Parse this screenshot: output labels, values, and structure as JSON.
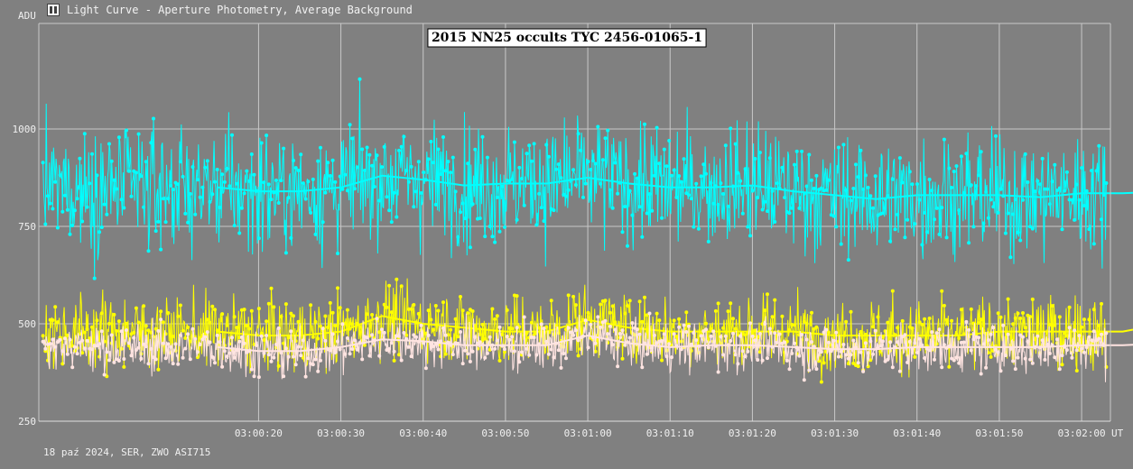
{
  "window": {
    "title": "Light Curve - Aperture Photometry, Average Background",
    "footer": "18 paź 2024, SER, ZWO ASI715"
  },
  "chart_data": {
    "type": "line",
    "title": "2015 NN25 occults TYC 2456-01065-1",
    "xlabel": "UT",
    "ylabel": "ADU",
    "ylim": [
      250,
      1000
    ],
    "y_ticks": [
      250,
      500,
      750,
      1000
    ],
    "y_tick_labels": [
      "250",
      "500",
      "750",
      "1000"
    ],
    "x_ticks": [
      "03:00:20",
      "03:00:30",
      "03:00:40",
      "03:00:50",
      "03:01:00",
      "03:01:10",
      "03:01:20",
      "03:01:30",
      "03:01:40",
      "03:01:50",
      "03:02:00"
    ],
    "x_range_seconds": [
      10793.3,
      10923.5
    ],
    "grid": true,
    "colors": {
      "background": "#808080",
      "grid": "#c8c8c8",
      "cyan": "#00ffff",
      "yellow": "#ffff00",
      "pink": "#ffe4e1"
    },
    "series": [
      {
        "color": "#00ffff",
        "x": [
          "03:00:15",
          "03:00:20",
          "03:00:25",
          "03:00:30",
          "03:00:35",
          "03:00:40",
          "03:00:45",
          "03:00:50",
          "03:00:55",
          "03:01:00",
          "03:01:05",
          "03:01:10",
          "03:01:15",
          "03:01:20",
          "03:01:25",
          "03:01:30",
          "03:01:35",
          "03:01:40",
          "03:01:45",
          "03:01:50",
          "03:01:55",
          "03:02:00",
          "03:02:05",
          "03:02:10"
        ],
        "values": [
          850,
          840,
          840,
          850,
          880,
          870,
          855,
          860,
          860,
          875,
          860,
          850,
          850,
          855,
          840,
          830,
          820,
          830,
          830,
          830,
          825,
          835,
          835,
          840
        ]
      },
      {
        "color": "#ffff00",
        "x": [
          "03:00:15",
          "03:00:20",
          "03:00:25",
          "03:00:30",
          "03:00:35",
          "03:00:40",
          "03:00:45",
          "03:00:50",
          "03:00:55",
          "03:01:00",
          "03:01:05",
          "03:01:10",
          "03:01:15",
          "03:01:20",
          "03:01:25",
          "03:01:30",
          "03:01:35",
          "03:01:40",
          "03:01:45",
          "03:01:50",
          "03:01:55",
          "03:02:00",
          "03:02:05",
          "03:02:10"
        ],
        "values": [
          480,
          470,
          470,
          480,
          520,
          500,
          490,
          480,
          480,
          510,
          490,
          480,
          480,
          480,
          480,
          470,
          470,
          470,
          470,
          480,
          480,
          480,
          480,
          500
        ]
      },
      {
        "color": "#ffe4e1",
        "x": [
          "03:00:15",
          "03:00:20",
          "03:00:25",
          "03:00:30",
          "03:00:35",
          "03:00:40",
          "03:00:45",
          "03:00:50",
          "03:00:55",
          "03:01:00",
          "03:01:05",
          "03:01:10",
          "03:01:15",
          "03:01:20",
          "03:01:25",
          "03:01:30",
          "03:01:35",
          "03:01:40",
          "03:01:45",
          "03:01:50",
          "03:01:55",
          "03:02:00",
          "03:02:05",
          "03:02:10"
        ],
        "values": [
          440,
          430,
          430,
          440,
          460,
          455,
          445,
          445,
          445,
          470,
          450,
          440,
          445,
          445,
          440,
          435,
          435,
          440,
          440,
          440,
          440,
          445,
          445,
          450
        ]
      }
    ]
  }
}
